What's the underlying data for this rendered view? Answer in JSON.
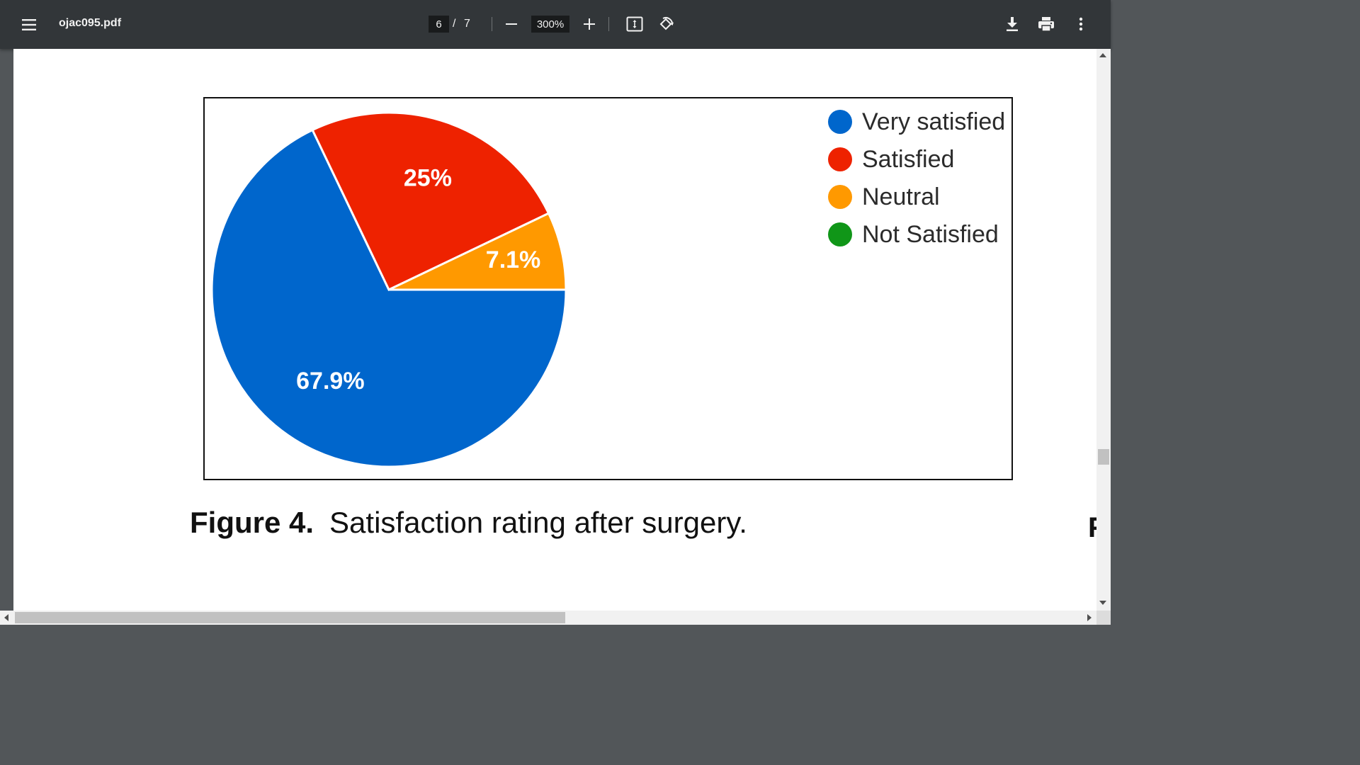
{
  "toolbar": {
    "menu_icon": "hamburger-menu-icon",
    "file_name": "ojac095.pdf",
    "current_page": "6",
    "page_separator": "/",
    "total_pages": "7",
    "zoom": "300%",
    "icons": [
      "minus-icon",
      "plus-icon",
      "fit-page-icon",
      "rotate-icon",
      "download-icon",
      "print-icon",
      "more-vert-icon"
    ]
  },
  "document": {
    "figure_number": "Figure 4.",
    "figure_caption": "Satisfaction rating after surgery.",
    "next_page_glyph": "F"
  },
  "chart_data": {
    "type": "pie",
    "slices": [
      {
        "label": "Very satisfied",
        "value": 67.9,
        "display": "67.9%",
        "color": "#0066cc"
      },
      {
        "label": "Satisfied",
        "value": 25,
        "display": "25%",
        "color": "#ee2200"
      },
      {
        "label": "Neutral",
        "value": 7.1,
        "display": "7.1%",
        "color": "#ff9900"
      },
      {
        "label": "Not Satisfied",
        "value": 0,
        "display": "",
        "color": "#109618"
      }
    ],
    "legend": [
      "Very satisfied",
      "Satisfied",
      "Neutral",
      "Not Satisfied"
    ],
    "legend_position": "top-right"
  }
}
